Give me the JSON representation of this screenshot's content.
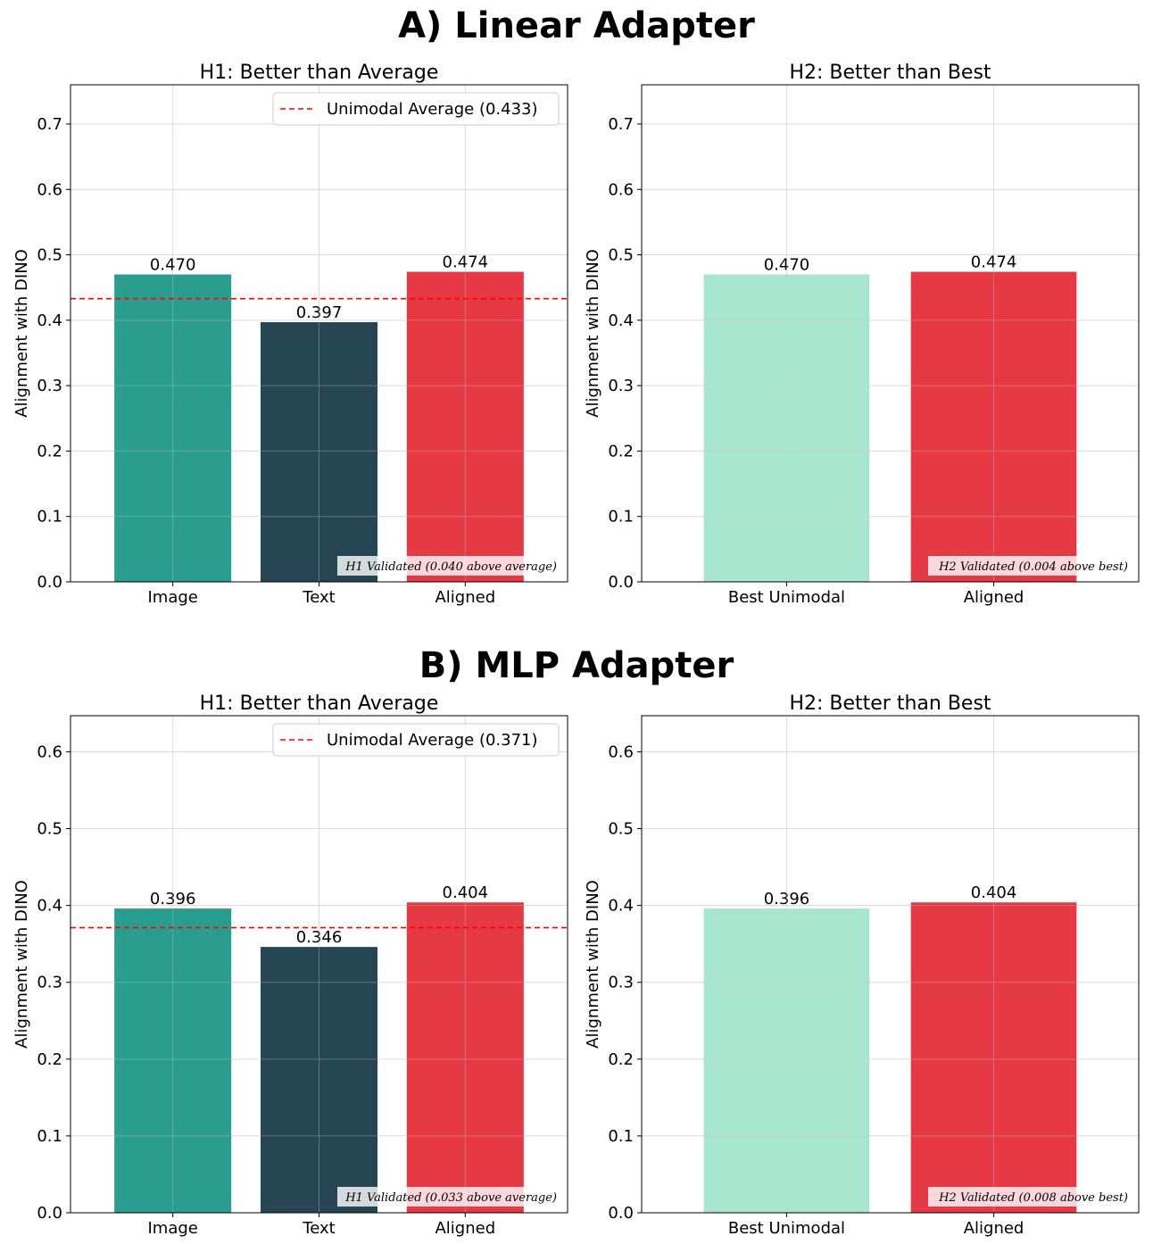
{
  "sections": [
    {
      "title": "A) Linear Adapter"
    },
    {
      "title": "B) MLP Adapter"
    }
  ],
  "colors": {
    "image": "#2a9d8f",
    "text": "#264653",
    "aligned": "#e63946",
    "best_unimodal": "#a8e6cf",
    "average_line": "#ff0000",
    "grid": "#e6e6e6"
  },
  "chart_data": [
    {
      "type": "bar",
      "title": "H1: Better than Average",
      "ylabel": "Alignment with DINO",
      "categories": [
        "Image",
        "Text",
        "Aligned"
      ],
      "values": [
        0.47,
        0.397,
        0.474
      ],
      "value_labels": [
        "0.470",
        "0.397",
        "0.474"
      ],
      "bar_colors": [
        "#2a9d8f",
        "#264653",
        "#e63946"
      ],
      "ylim": [
        0,
        0.76
      ],
      "yticks": [
        "0.0",
        "0.1",
        "0.2",
        "0.3",
        "0.4",
        "0.5",
        "0.6",
        "0.7"
      ],
      "reference_line": {
        "value": 0.433,
        "label": "Unimodal Average (0.433)"
      },
      "legend": "top-right",
      "annotation": "H1 Validated (0.040 above average)",
      "grid": true
    },
    {
      "type": "bar",
      "title": "H2: Better than Best",
      "ylabel": "Alignment with DINO",
      "categories": [
        "Best Unimodal",
        "Aligned"
      ],
      "values": [
        0.47,
        0.474
      ],
      "value_labels": [
        "0.470",
        "0.474"
      ],
      "bar_colors": [
        "#a8e6cf",
        "#e63946"
      ],
      "ylim": [
        0,
        0.76
      ],
      "yticks": [
        "0.0",
        "0.1",
        "0.2",
        "0.3",
        "0.4",
        "0.5",
        "0.6",
        "0.7"
      ],
      "annotation": "H2 Validated (0.004 above best)",
      "grid": true
    },
    {
      "type": "bar",
      "title": "H1: Better than Average",
      "ylabel": "Alignment with DINO",
      "categories": [
        "Image",
        "Text",
        "Aligned"
      ],
      "values": [
        0.396,
        0.346,
        0.404
      ],
      "value_labels": [
        "0.396",
        "0.346",
        "0.404"
      ],
      "bar_colors": [
        "#2a9d8f",
        "#264653",
        "#e63946"
      ],
      "ylim": [
        0,
        0.647
      ],
      "yticks": [
        "0.0",
        "0.1",
        "0.2",
        "0.3",
        "0.4",
        "0.5",
        "0.6"
      ],
      "reference_line": {
        "value": 0.371,
        "label": "Unimodal Average (0.371)"
      },
      "legend": "top-right",
      "annotation": "H1 Validated (0.033 above average)",
      "grid": true
    },
    {
      "type": "bar",
      "title": "H2: Better than Best",
      "ylabel": "Alignment with DINO",
      "categories": [
        "Best Unimodal",
        "Aligned"
      ],
      "values": [
        0.396,
        0.404
      ],
      "value_labels": [
        "0.396",
        "0.404"
      ],
      "bar_colors": [
        "#a8e6cf",
        "#e63946"
      ],
      "ylim": [
        0,
        0.647
      ],
      "yticks": [
        "0.0",
        "0.1",
        "0.2",
        "0.3",
        "0.4",
        "0.5",
        "0.6"
      ],
      "annotation": "H2 Validated (0.008 above best)",
      "grid": true
    }
  ]
}
